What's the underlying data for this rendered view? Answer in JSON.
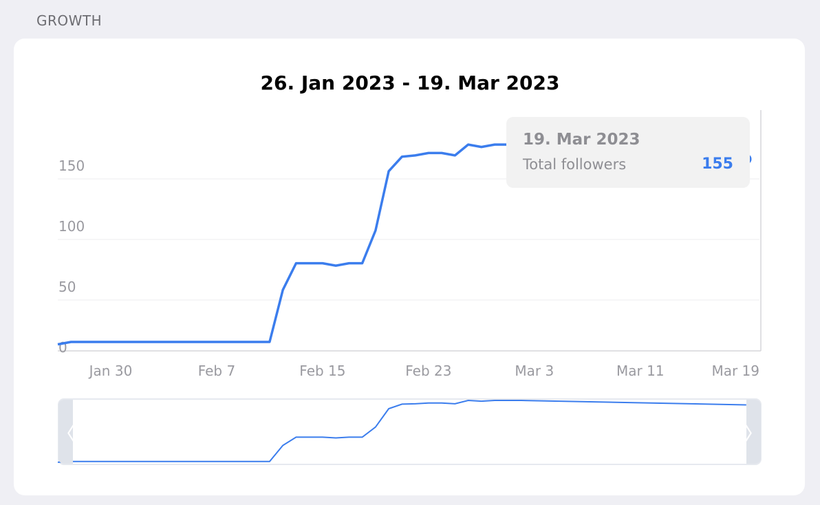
{
  "section_label": "GROWTH",
  "chart_title": "26. Jan 2023 - 19. Mar 2023",
  "tooltip": {
    "date": "19. Mar 2023",
    "label": "Total followers",
    "value": "155"
  },
  "navigator": {
    "left_handle_icon": "chevron-left-icon",
    "right_handle_icon": "chevron-right-icon",
    "left_glyph": "〈",
    "right_glyph": "〉"
  },
  "colors": {
    "line": "#3b7ded",
    "grid": "#ececef",
    "axis_text": "#9a9aa0",
    "tooltip_value": "#3b7ded"
  },
  "chart_data": {
    "type": "line",
    "title": "26. Jan 2023 - 19. Mar 2023",
    "xlabel": "",
    "ylabel": "",
    "ylim": [
      0,
      200
    ],
    "y_ticks": [
      "0",
      "50",
      "100",
      "150"
    ],
    "y_tick_values": [
      0,
      50,
      100,
      150
    ],
    "x_ticks": [
      "Jan 30",
      "Feb 7",
      "Feb 15",
      "Feb 23",
      "Mar 3",
      "Mar 11",
      "Mar 19"
    ],
    "x_tick_dates": [
      "2023-01-30",
      "2023-02-07",
      "2023-02-15",
      "2023-02-23",
      "2023-03-03",
      "2023-03-11",
      "2023-03-19"
    ],
    "x_range": [
      "2023-01-26",
      "2023-03-20"
    ],
    "grid": true,
    "series": [
      {
        "points": [
          {
            "x": "2023-01-26",
            "y": 2
          },
          {
            "x": "2023-01-27",
            "y": 4
          },
          {
            "x": "2023-01-28",
            "y": 4
          },
          {
            "x": "2023-01-29",
            "y": 4
          },
          {
            "x": "2023-01-30",
            "y": 4
          },
          {
            "x": "2023-01-31",
            "y": 4
          },
          {
            "x": "2023-02-01",
            "y": 4
          },
          {
            "x": "2023-02-02",
            "y": 4
          },
          {
            "x": "2023-02-03",
            "y": 4
          },
          {
            "x": "2023-02-04",
            "y": 4
          },
          {
            "x": "2023-02-05",
            "y": 4
          },
          {
            "x": "2023-02-06",
            "y": 4
          },
          {
            "x": "2023-02-07",
            "y": 4
          },
          {
            "x": "2023-02-08",
            "y": 4
          },
          {
            "x": "2023-02-09",
            "y": 4
          },
          {
            "x": "2023-02-10",
            "y": 4
          },
          {
            "x": "2023-02-11",
            "y": 4
          },
          {
            "x": "2023-02-12",
            "y": 47
          },
          {
            "x": "2023-02-13",
            "y": 69
          },
          {
            "x": "2023-02-14",
            "y": 69
          },
          {
            "x": "2023-02-15",
            "y": 69
          },
          {
            "x": "2023-02-16",
            "y": 67
          },
          {
            "x": "2023-02-17",
            "y": 69
          },
          {
            "x": "2023-02-18",
            "y": 69
          },
          {
            "x": "2023-02-19",
            "y": 96
          },
          {
            "x": "2023-02-20",
            "y": 145
          },
          {
            "x": "2023-02-21",
            "y": 157
          },
          {
            "x": "2023-02-22",
            "y": 158
          },
          {
            "x": "2023-02-23",
            "y": 160
          },
          {
            "x": "2023-02-24",
            "y": 160
          },
          {
            "x": "2023-02-25",
            "y": 158
          },
          {
            "x": "2023-02-26",
            "y": 167
          },
          {
            "x": "2023-02-27",
            "y": 165
          },
          {
            "x": "2023-02-28",
            "y": 167
          },
          {
            "x": "2023-03-01",
            "y": 167
          },
          {
            "x": "2023-03-02",
            "y": 167
          },
          {
            "x": "2023-03-19",
            "y": 155
          }
        ]
      }
    ],
    "highlighted_point": {
      "x": "2023-03-19",
      "y": 155
    }
  }
}
